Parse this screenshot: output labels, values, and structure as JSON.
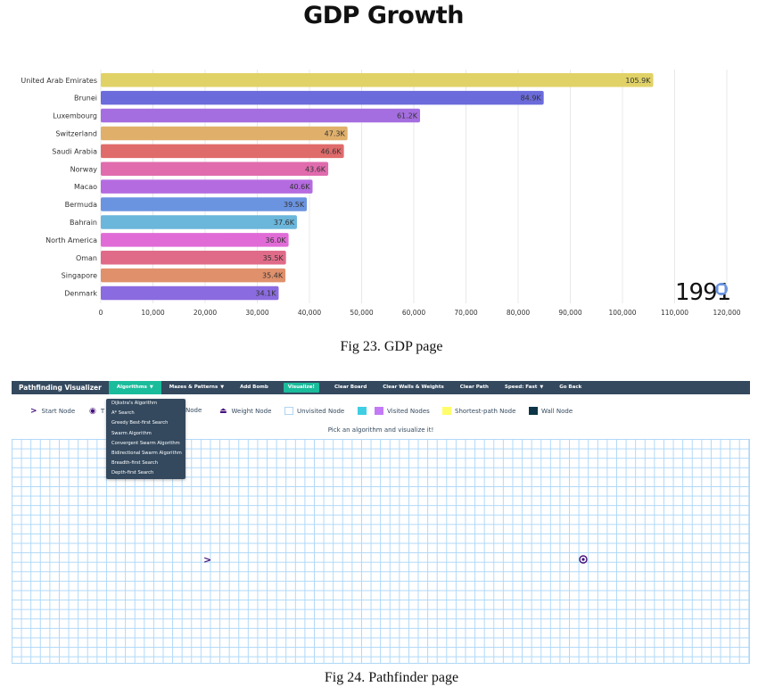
{
  "gdp_page": {
    "title": "GDP Growth",
    "year": "1991",
    "caption": "Fig 23. GDP page"
  },
  "chart_data": {
    "type": "bar",
    "orientation": "horizontal",
    "title": "GDP Growth",
    "categories": [
      "United Arab Emirates",
      "Brunei",
      "Luxembourg",
      "Switzerland",
      "Saudi Arabia",
      "Norway",
      "Macao",
      "Bermuda",
      "Bahrain",
      "North America",
      "Oman",
      "Singapore",
      "Denmark"
    ],
    "values": [
      105900,
      84900,
      61200,
      47300,
      46600,
      43600,
      40600,
      39500,
      37600,
      36000,
      35500,
      35400,
      34100
    ],
    "value_labels": [
      "105.9K",
      "84.9K",
      "61.2K",
      "47.3K",
      "46.6K",
      "43.6K",
      "40.6K",
      "39.5K",
      "37.6K",
      "36.0K",
      "35.5K",
      "35.4K",
      "34.1K"
    ],
    "colors": [
      "#e0d267",
      "#6b6bdb",
      "#a56ee0",
      "#e0b06b",
      "#e06b6b",
      "#e06bad",
      "#b56be0",
      "#6b94e0",
      "#6bb6db",
      "#e06bd6",
      "#e06b89",
      "#e0906b",
      "#8b6be0"
    ],
    "x_ticks": [
      "0",
      "10,000",
      "20,000",
      "30,000",
      "40,000",
      "50,000",
      "60,000",
      "70,000",
      "80,000",
      "90,000",
      "100,000",
      "110,000",
      "120,000"
    ],
    "xlim": [
      0,
      120000
    ],
    "grid": "vertical",
    "year_marker_color": "#6b94e0"
  },
  "pathfinder": {
    "brand": "Pathfinding Visualizer",
    "nav": {
      "algorithms": "Algorithms",
      "mazes": "Mazes & Patterns",
      "add_bomb": "Add Bomb",
      "visualize": "Visualize!",
      "clear_board": "Clear Board",
      "clear_walls": "Clear Walls & Weights",
      "clear_path": "Clear Path",
      "speed": "Speed: Fast",
      "go_back": "Go Back"
    },
    "dropdown": [
      "Dijkstra's Algorithm",
      "A* Search",
      "Greedy Best-first Search",
      "Swarm Algorithm",
      "Convergent Swarm Algorithm",
      "Bidirectional Swarm Algorithm",
      "Breadth-first Search",
      "Depth-first Search"
    ],
    "legend": {
      "start": "Start Node",
      "target_partial": "T",
      "target_suffix": "Node",
      "weight": "Weight Node",
      "unvisited": "Unvisited Node",
      "visited": "Visited Nodes",
      "shortest": "Shortest-path Node",
      "wall": "Wall Node"
    },
    "message": "Pick an algorithm and visualize it!",
    "colors": {
      "nav_bg": "#34495e",
      "accent": "#1abc9c",
      "node_purple": "#44107a",
      "grid_line": "#afd8f8"
    },
    "icons": {
      "start": "chevron-right-icon",
      "target": "target-icon",
      "weight": "weight-icon"
    },
    "caption": "Fig 24. Pathfinder page"
  }
}
